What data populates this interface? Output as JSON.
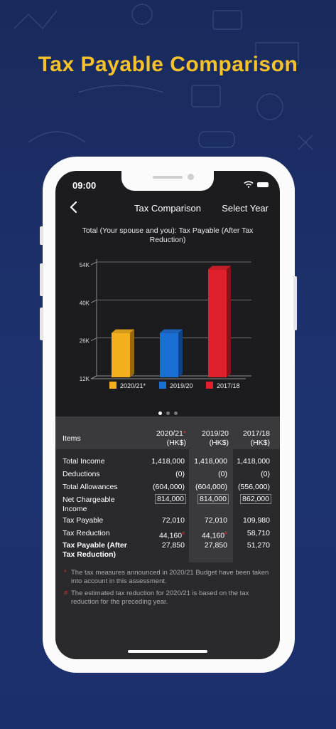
{
  "headline": "Tax Payable Comparison",
  "status_bar": {
    "time": "09:00"
  },
  "nav": {
    "title": "Tax Comparison",
    "action": "Select Year"
  },
  "chart_data": {
    "type": "bar",
    "title": "Total (Your spouse and you): Tax Payable (After Tax Reduction)",
    "categories": [
      "2020/21*",
      "2019/20",
      "2017/18"
    ],
    "values": [
      27850,
      27850,
      51270
    ],
    "colors": [
      "#f3b01c",
      "#1a6fd4",
      "#e0202a"
    ],
    "y_ticks": [
      "12K",
      "26K",
      "40K",
      "54K"
    ],
    "ylim": [
      12000,
      54000
    ],
    "legend": [
      "2020/21*",
      "2019/20",
      "2017/18"
    ]
  },
  "pager": {
    "count": 3,
    "active": 0
  },
  "table": {
    "header": {
      "items": "Items",
      "col1_a": "2020/21",
      "col1_mark": "*",
      "col1_b": "(HK$)",
      "col2_a": "2019/20",
      "col2_b": "(HK$)",
      "col3_a": "2017/18",
      "col3_b": "(HK$)"
    },
    "rows": [
      {
        "label": "Total Income",
        "v1": "1,418,000",
        "v2": "1,418,000",
        "v3": "1,418,000"
      },
      {
        "label": "Deductions",
        "v1": "(0)",
        "v2": "(0)",
        "v3": "(0)"
      },
      {
        "label": "Total Allowances",
        "v1": "(604,000)",
        "v2": "(604,000)",
        "v3": "(556,000)"
      },
      {
        "label": "Net Chargeable Income",
        "v1": "814,000",
        "v2": "814,000",
        "v3": "862,000"
      },
      {
        "label": "Tax Payable",
        "v1": "72,010",
        "v2": "72,010",
        "v3": "109,980"
      },
      {
        "label": "Tax Reduction",
        "v1": "44,160",
        "v1_mark": "#",
        "v2": "44,160",
        "v2_mark": "#",
        "v3": "58,710"
      },
      {
        "label": "Tax Payable (After Tax Reduction)",
        "v1": "27,850",
        "v2": "27,850",
        "v3": "51,270"
      }
    ]
  },
  "notes": [
    {
      "mark": "*",
      "text": "The tax measures announced in 2020/21 Budget have been taken into account in this assessment."
    },
    {
      "mark": "#",
      "text": "The estimated tax reduction for 2020/21 is based on the tax reduction for the preceding year."
    }
  ]
}
